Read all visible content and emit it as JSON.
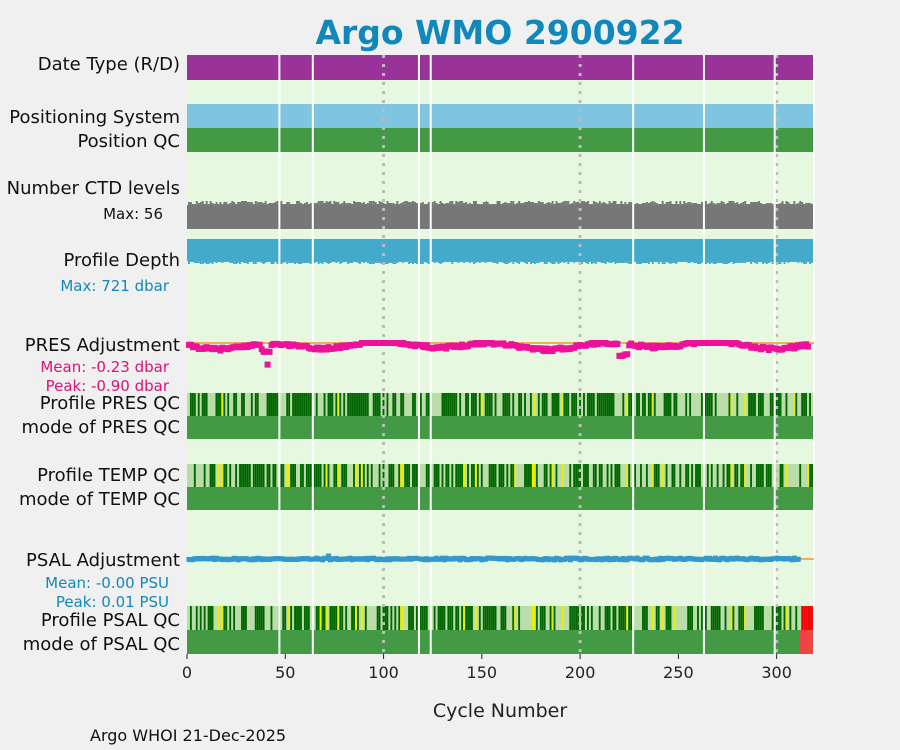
{
  "chart_data": {
    "type": "status-timeline",
    "title": "Argo WMO 2900922",
    "xlabel": "Cycle Number",
    "xlim": [
      0,
      319
    ],
    "xticks": [
      0,
      50,
      100,
      150,
      200,
      250,
      300
    ],
    "grid_x": [
      100,
      200,
      300
    ],
    "footer": "Argo WHOI 21-Dec-2025",
    "missing_cycles": [
      47,
      64,
      118,
      124,
      227,
      263,
      299,
      319
    ],
    "rows": {
      "date_type": {
        "label": "Date Type (R/D)",
        "color": "#993399"
      },
      "positioning": {
        "label": "Positioning System",
        "color": "#7fc4e0"
      },
      "position_qc": {
        "label": "Position QC",
        "color": "#449944"
      },
      "ctd_levels": {
        "label": "Number CTD levels",
        "max_label": "Max: 56",
        "max": 56,
        "color": "#777777"
      },
      "profile_depth": {
        "label": "Profile Depth",
        "max_label": "Max:  721 dbar",
        "max": 721,
        "color": "#44aacc"
      },
      "pres_adjustment": {
        "label": "PRES Adjustment",
        "mean_label": "Mean: -0.23 dbar",
        "peak_label": "Peak: -0.90 dbar",
        "mean": -0.23,
        "peak": -0.9,
        "color": "#ee1199",
        "zero_line_color": "#f0b050"
      },
      "profile_pres_qc": {
        "label": "Profile PRES QC"
      },
      "mode_pres_qc": {
        "label": "mode of PRES QC"
      },
      "profile_temp_qc": {
        "label": "Profile TEMP QC"
      },
      "mode_temp_qc": {
        "label": "mode of TEMP QC"
      },
      "psal_adjustment": {
        "label": "PSAL Adjustment",
        "mean_label": "Mean: -0.00 PSU",
        "peak_label": "Peak: 0.01 PSU",
        "mean": -0.0,
        "peak": 0.01,
        "color": "#3399cc",
        "zero_line_color": "#f0b050"
      },
      "profile_psal_qc": {
        "label": "Profile PSAL QC"
      },
      "mode_psal_qc": {
        "label": "mode of PSAL QC"
      }
    },
    "qc_colors": {
      "A": "#006600",
      "B": "#bbddaa",
      "C": "#eeee00",
      "E": "#ee0000",
      "mode_good": "#449944",
      "mode_bad": "#ee4444",
      "background": "#e6f9e0"
    },
    "pres_qc_yellow_cycles": [
      18,
      77,
      150,
      177,
      191,
      224,
      237,
      277,
      284,
      309
    ],
    "temp_qc_yellow_cycles": [
      16,
      18,
      51,
      52,
      71,
      77,
      86,
      89,
      109,
      110,
      141,
      147,
      167,
      176,
      177,
      186,
      191,
      224,
      237,
      242,
      277,
      284,
      305,
      316
    ],
    "psal_qc_yellow_cycles": [
      16,
      18,
      52,
      68,
      71,
      77,
      86,
      89,
      109,
      110,
      141,
      147,
      167,
      176,
      177,
      186,
      191,
      224,
      237,
      242,
      248,
      277,
      284,
      305
    ],
    "psal_qc_red_cycles": [
      313,
      314,
      315,
      316,
      317,
      318
    ],
    "psal_mode_red_cycles": [
      312,
      313,
      314,
      315,
      316,
      317,
      318
    ]
  }
}
